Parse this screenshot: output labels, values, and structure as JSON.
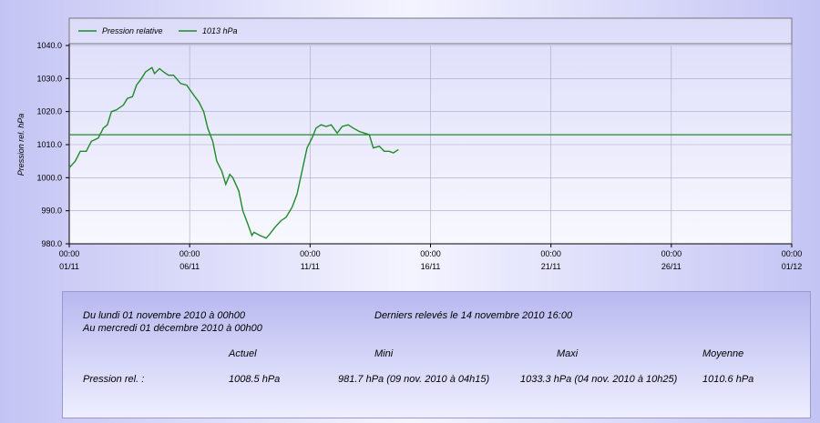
{
  "chart_data": {
    "type": "line",
    "y_label": "Pression rel.  hPa",
    "series": [
      {
        "name": "Pression relative",
        "color": "#1f8a2a",
        "x": [
          "01/11 00:00",
          "01/11 06:00",
          "01/11 11:00",
          "01/11 17:00",
          "01/11 22:00",
          "02/11 05:00",
          "02/11 10:00",
          "02/11 14:00",
          "02/11 18:00",
          "02/11 23:00",
          "03/11 06:00",
          "03/11 10:00",
          "03/11 15:00",
          "03/11 19:00",
          "04/11 00:00",
          "04/11 04:00",
          "04/11 10:25",
          "04/11 13:00",
          "04/11 18:00",
          "04/11 22:00",
          "05/11 03:00",
          "05/11 08:00",
          "05/11 15:00",
          "05/11 21:00",
          "06/11 04:00",
          "06/11 09:00",
          "06/11 14:00",
          "06/11 18:00",
          "06/11 23:00",
          "07/11 03:00",
          "07/11 08:00",
          "07/11 12:00",
          "07/11 16:00",
          "07/11 19:00",
          "08/11 01:00",
          "08/11 05:00",
          "08/11 10:00",
          "08/11 14:00",
          "08/11 16:00",
          "08/11 22:00",
          "09/11 04:15",
          "09/11 08:00",
          "09/11 13:00",
          "09/11 19:00",
          "10/11 00:00",
          "10/11 06:00",
          "10/11 11:00",
          "10/11 16:00",
          "10/11 21:00",
          "11/11 02:00",
          "11/11 06:00",
          "11/11 11:00",
          "11/11 16:00",
          "11/11 21:00",
          "12/11 03:00",
          "12/11 08:00",
          "12/11 14:00",
          "12/11 19:00",
          "13/11 01:00",
          "13/11 06:00",
          "13/11 11:00",
          "13/11 15:00",
          "13/11 21:00",
          "14/11 02:00",
          "14/11 07:00",
          "14/11 11:00",
          "14/11 16:00"
        ],
        "values": [
          1003,
          1005,
          1008,
          1008,
          1011,
          1012,
          1015,
          1016,
          1020,
          1020.5,
          1022,
          1024,
          1024.5,
          1028,
          1030,
          1032,
          1033.3,
          1031.5,
          1033,
          1032,
          1031,
          1031,
          1028.5,
          1028,
          1025,
          1023,
          1020,
          1015,
          1011,
          1005,
          1002,
          998,
          1001,
          1000,
          996,
          990,
          986,
          982.5,
          983.5,
          982.5,
          981.7,
          983,
          985,
          987,
          988,
          991,
          995,
          1002,
          1009,
          1012,
          1015,
          1016,
          1015.5,
          1016,
          1013.5,
          1015.5,
          1016,
          1015,
          1014,
          1013.5,
          1013,
          1009,
          1009.5,
          1008,
          1008,
          1007.5,
          1008.5
        ]
      }
    ],
    "reference": {
      "name": "1013 hPa",
      "value": 1013,
      "color": "#1f8a2a"
    },
    "xlim": [
      "01/11 00:00",
      "01/12 00:00"
    ],
    "xticks": [
      {
        "value": "01/11 00:00",
        "label": [
          "00:00",
          "01/11"
        ]
      },
      {
        "value": "06/11 00:00",
        "label": [
          "00:00",
          "06/11"
        ]
      },
      {
        "value": "11/11 00:00",
        "label": [
          "00:00",
          "11/11"
        ]
      },
      {
        "value": "16/11 00:00",
        "label": [
          "00:00",
          "16/11"
        ]
      },
      {
        "value": "21/11 00:00",
        "label": [
          "00:00",
          "21/11"
        ]
      },
      {
        "value": "26/11 00:00",
        "label": [
          "00:00",
          "26/11"
        ]
      },
      {
        "value": "01/12 00:00",
        "label": [
          "00:00",
          "01/12"
        ]
      }
    ],
    "ylim": [
      980,
      1040
    ],
    "yticks": [
      {
        "value": 980,
        "label": "980.0"
      },
      {
        "value": 990,
        "label": "990.0"
      },
      {
        "value": 1000,
        "label": "1000.0"
      },
      {
        "value": 1010,
        "label": "1010.0"
      },
      {
        "value": 1020,
        "label": "1020.0"
      },
      {
        "value": 1030,
        "label": "1030.0"
      },
      {
        "value": 1040,
        "label": "1040.0"
      }
    ],
    "grid": true
  },
  "summary": {
    "period_from": "Du lundi 01 novembre 2010 à 00h00",
    "period_to": "Au mercredi 01 décembre 2010 à 00h00",
    "last_reading": "Derniers relevés le 14 novembre 2010 16:00",
    "headers": [
      "Actuel",
      "Mini",
      "Maxi",
      "Moyenne"
    ],
    "row": {
      "label": "Pression rel. :",
      "cells": [
        "1008.5 hPa",
        "981.7 hPa (09 nov. 2010 à 04h15)",
        "1033.3 hPa (04 nov. 2010 à 10h25)",
        "1010.6 hPa"
      ]
    }
  }
}
